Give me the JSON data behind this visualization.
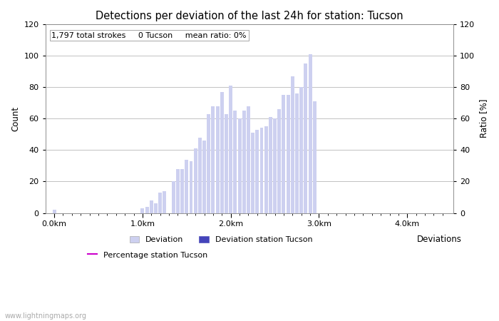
{
  "title": "Detections per deviation of the last 24h for station: Tucson",
  "xlabel": "Deviations",
  "ylabel_left": "Count",
  "ylabel_right": "Ratio [%]",
  "annotation": "1,797 total strokes     0 Tucson     mean ratio: 0%",
  "watermark": "www.lightningmaps.org",
  "ylim": [
    0,
    120
  ],
  "xtick_labels": [
    "0.0km",
    "1.0km",
    "2.0km",
    "3.0km",
    "4.0km"
  ],
  "bar_width": 0.8,
  "bar_color_light": "#cdd0f0",
  "bar_color_dark": "#4444bb",
  "line_color": "#cc00cc",
  "values": [
    2,
    0,
    0,
    0,
    0,
    0,
    0,
    0,
    0,
    0,
    0,
    0,
    0,
    0,
    0,
    0,
    0,
    0,
    0,
    0,
    3,
    4,
    8,
    6,
    13,
    14,
    0,
    20,
    28,
    28,
    34,
    33,
    41,
    48,
    46,
    63,
    68,
    68,
    77,
    63,
    81,
    65,
    60,
    65,
    68,
    51,
    53,
    54,
    55,
    61,
    60,
    66,
    75,
    75,
    87,
    76,
    80,
    95,
    101,
    71,
    0,
    0,
    0,
    0,
    0,
    0,
    0,
    0,
    0,
    0,
    0,
    0,
    0,
    0,
    0,
    0,
    0,
    0,
    0,
    0,
    0,
    0,
    0,
    0,
    0,
    0,
    0,
    0,
    0,
    0
  ],
  "n_bars": 90,
  "km_per_bar": 0.05,
  "xtick_km": [
    0.0,
    1.0,
    2.0,
    3.0,
    4.0
  ],
  "grid_color": "#aaaaaa",
  "background_color": "#ffffff",
  "title_fontsize": 10.5,
  "label_fontsize": 8.5,
  "tick_fontsize": 8,
  "annotation_fontsize": 8
}
